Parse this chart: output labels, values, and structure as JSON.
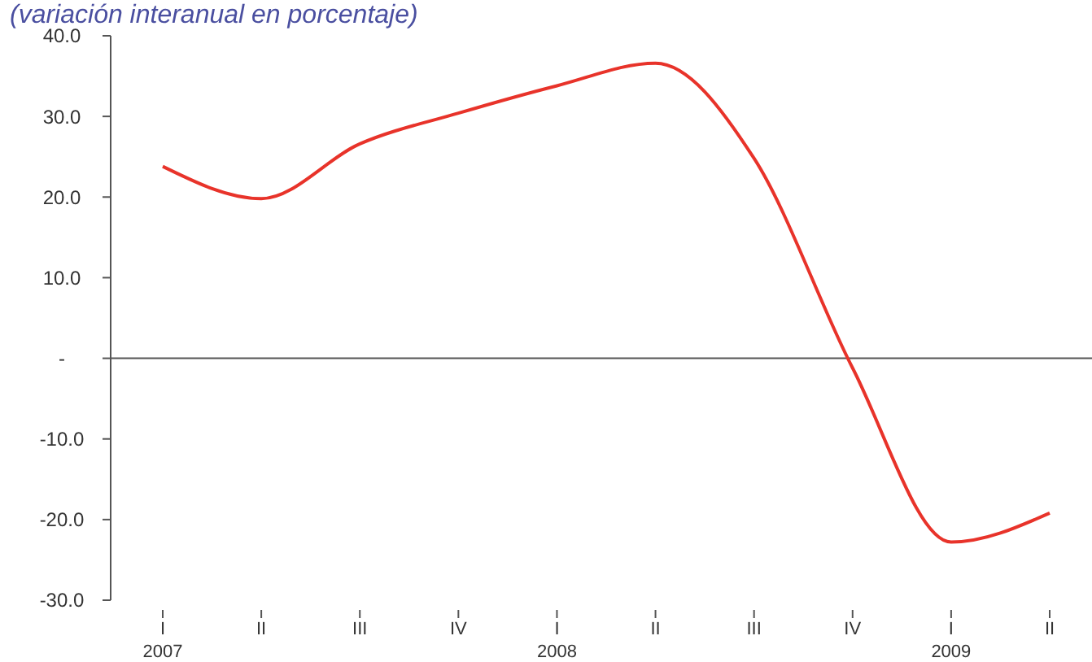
{
  "chart_data": {
    "type": "line",
    "subtitle": "(variación interanual en porcentaje)",
    "categories": [
      "I",
      "II",
      "III",
      "IV",
      "I",
      "II",
      "III",
      "IV",
      "I",
      "II"
    ],
    "series": [
      {
        "color": "#e8332a",
        "values": [
          23.8,
          19.8,
          26.6,
          30.4,
          33.8,
          36.6,
          24.8,
          -1.2,
          -22.8,
          -19.2
        ]
      }
    ],
    "ylim": [
      -30,
      40
    ],
    "yticks": [
      {
        "value": -30,
        "label": "-30.0"
      },
      {
        "value": -20,
        "label": "-20.0"
      },
      {
        "value": -10,
        "label": "-10.0"
      },
      {
        "value": 0,
        "label": "-"
      },
      {
        "value": 10,
        "label": "10.0"
      },
      {
        "value": 20,
        "label": "20.0"
      },
      {
        "value": 30,
        "label": "30.0"
      },
      {
        "value": 40,
        "label": "40.0"
      }
    ],
    "annotations": [
      "2007",
      "2008",
      "2009"
    ],
    "marker": "none",
    "line_style": "solid"
  }
}
